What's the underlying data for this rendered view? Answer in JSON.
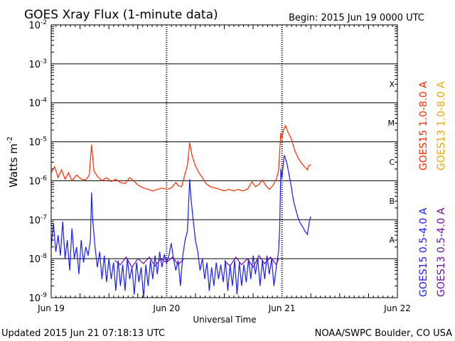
{
  "chart_data": {
    "type": "line",
    "title": "GOES Xray Flux (1-minute data)",
    "begin_label": "Begin:  2015 Jun 19 0000 UTC",
    "ylabel_main": "Watts m",
    "ylabel_exp": "-2",
    "xlabel": "Universal Time",
    "x_ticks": [
      "Jun 19",
      "Jun 20",
      "Jun 21",
      "Jun 22"
    ],
    "xlim_days": [
      0,
      3
    ],
    "yscale": "log",
    "ylim": [
      1e-09,
      0.01
    ],
    "y_tick_exponents": [
      "-2",
      "-3",
      "-4",
      "-5",
      "-6",
      "-7",
      "-8",
      "-9"
    ],
    "y_tick_base": "10",
    "flare_classes": [
      {
        "label": "X",
        "value": 0.0001
      },
      {
        "label": "M",
        "value": 1e-05
      },
      {
        "label": "C",
        "value": 1e-06
      },
      {
        "label": "B",
        "value": 1e-07
      },
      {
        "label": "A",
        "value": 1e-08
      }
    ],
    "series": [
      {
        "name": "GOES15 1.0-8.0 A",
        "color": "#ff2a00",
        "points": [
          [
            0.0,
            1.6e-06
          ],
          [
            0.03,
            2.3e-06
          ],
          [
            0.06,
            1.2e-06
          ],
          [
            0.09,
            1.9e-06
          ],
          [
            0.12,
            1.1e-06
          ],
          [
            0.15,
            1.6e-06
          ],
          [
            0.18,
            1e-06
          ],
          [
            0.22,
            1.4e-06
          ],
          [
            0.26,
            1.1e-06
          ],
          [
            0.3,
            1.05e-06
          ],
          [
            0.33,
            1.4e-06
          ],
          [
            0.35,
            8.5e-06
          ],
          [
            0.37,
            1.8e-06
          ],
          [
            0.4,
            1.3e-06
          ],
          [
            0.44,
            1e-06
          ],
          [
            0.48,
            1.2e-06
          ],
          [
            0.52,
            9.5e-07
          ],
          [
            0.56,
            1.1e-06
          ],
          [
            0.6,
            9e-07
          ],
          [
            0.64,
            8.5e-07
          ],
          [
            0.68,
            1.2e-06
          ],
          [
            0.72,
            9.5e-07
          ],
          [
            0.76,
            7.5e-07
          ],
          [
            0.8,
            6.5e-07
          ],
          [
            0.84,
            6e-07
          ],
          [
            0.88,
            5.5e-07
          ],
          [
            0.92,
            6e-07
          ],
          [
            0.96,
            6.5e-07
          ],
          [
            1.0,
            6e-07
          ],
          [
            1.04,
            6.5e-07
          ],
          [
            1.08,
            9e-07
          ],
          [
            1.1,
            7.5e-07
          ],
          [
            1.13,
            7e-07
          ],
          [
            1.16,
            1.5e-06
          ],
          [
            1.18,
            2.5e-06
          ],
          [
            1.2,
            9.5e-06
          ],
          [
            1.22,
            4.5e-06
          ],
          [
            1.25,
            2.4e-06
          ],
          [
            1.28,
            1.6e-06
          ],
          [
            1.31,
            1.2e-06
          ],
          [
            1.34,
            8.5e-07
          ],
          [
            1.38,
            7e-07
          ],
          [
            1.42,
            6.5e-07
          ],
          [
            1.46,
            6e-07
          ],
          [
            1.5,
            5.5e-07
          ],
          [
            1.54,
            6e-07
          ],
          [
            1.58,
            5.5e-07
          ],
          [
            1.62,
            6e-07
          ],
          [
            1.66,
            5.5e-07
          ],
          [
            1.7,
            6e-07
          ],
          [
            1.74,
            9.5e-07
          ],
          [
            1.77,
            7e-07
          ],
          [
            1.8,
            8e-07
          ],
          [
            1.83,
            1.05e-06
          ],
          [
            1.86,
            7.5e-07
          ],
          [
            1.89,
            6e-07
          ],
          [
            1.92,
            7.5e-07
          ],
          [
            1.95,
            1.1e-06
          ],
          [
            1.97,
            1.8e-06
          ],
          [
            1.99,
            1.7e-05
          ],
          [
            2.0,
            1.2e-05
          ],
          [
            2.01,
            1.9e-05
          ],
          [
            2.03,
            2.6e-05
          ],
          [
            2.05,
            1.8e-05
          ],
          [
            2.08,
            1.2e-05
          ],
          [
            2.11,
            6e-06
          ],
          [
            2.14,
            3.8e-06
          ],
          [
            2.17,
            2.8e-06
          ],
          [
            2.2,
            2.2e-06
          ],
          [
            2.22,
            1.9e-06
          ],
          [
            2.23,
            2.4e-06
          ],
          [
            2.25,
            2.6e-06
          ]
        ]
      },
      {
        "name": "GOES13 1.0-8.0 A",
        "color": "#f0a500",
        "points": []
      },
      {
        "name": "GOES15 0.5-4.0 A",
        "color": "#1a1aff",
        "points": [
          [
            0.0,
            2e-08
          ],
          [
            0.02,
            8e-08
          ],
          [
            0.04,
            1.5e-08
          ],
          [
            0.06,
            4e-08
          ],
          [
            0.08,
            1.2e-08
          ],
          [
            0.1,
            9e-08
          ],
          [
            0.12,
            1e-08
          ],
          [
            0.14,
            3e-08
          ],
          [
            0.16,
            5e-09
          ],
          [
            0.18,
            6e-08
          ],
          [
            0.2,
            1e-08
          ],
          [
            0.22,
            2e-08
          ],
          [
            0.24,
            4e-09
          ],
          [
            0.26,
            3e-08
          ],
          [
            0.28,
            8e-09
          ],
          [
            0.3,
            2e-08
          ],
          [
            0.32,
            1.2e-08
          ],
          [
            0.34,
            3e-08
          ],
          [
            0.35,
            5e-07
          ],
          [
            0.36,
            1e-07
          ],
          [
            0.38,
            2e-08
          ],
          [
            0.4,
            6e-09
          ],
          [
            0.42,
            1.5e-08
          ],
          [
            0.44,
            3e-09
          ],
          [
            0.46,
            1.2e-08
          ],
          [
            0.48,
            2.5e-09
          ],
          [
            0.5,
            1e-08
          ],
          [
            0.52,
            3e-09
          ],
          [
            0.54,
            8e-09
          ],
          [
            0.56,
            1.5e-09
          ],
          [
            0.58,
            9e-09
          ],
          [
            0.6,
            2e-09
          ],
          [
            0.62,
            7e-09
          ],
          [
            0.64,
            1.5e-09
          ],
          [
            0.66,
            1e-08
          ],
          [
            0.68,
            3e-09
          ],
          [
            0.7,
            6e-09
          ],
          [
            0.72,
            1.2e-09
          ],
          [
            0.74,
            8e-09
          ],
          [
            0.76,
            2.5e-09
          ],
          [
            0.78,
            6e-09
          ],
          [
            0.8,
            1e-09
          ],
          [
            0.82,
            7e-09
          ],
          [
            0.84,
            2e-09
          ],
          [
            0.86,
            9e-09
          ],
          [
            0.88,
            3e-09
          ],
          [
            0.9,
            1.2e-08
          ],
          [
            0.92,
            4e-09
          ],
          [
            0.94,
            1.5e-08
          ],
          [
            0.96,
            6e-09
          ],
          [
            0.98,
            1.3e-08
          ],
          [
            1.0,
            8e-09
          ],
          [
            1.02,
            1.2e-08
          ],
          [
            1.04,
            2.5e-08
          ],
          [
            1.06,
            1e-08
          ],
          [
            1.08,
            5e-09
          ],
          [
            1.1,
            9e-09
          ],
          [
            1.12,
            2e-09
          ],
          [
            1.14,
            1.2e-08
          ],
          [
            1.16,
            3e-08
          ],
          [
            1.18,
            5e-08
          ],
          [
            1.2,
            1.1e-06
          ],
          [
            1.21,
            4e-07
          ],
          [
            1.23,
            1e-07
          ],
          [
            1.25,
            3e-08
          ],
          [
            1.27,
            1.5e-08
          ],
          [
            1.29,
            5e-09
          ],
          [
            1.31,
            1e-08
          ],
          [
            1.33,
            3e-09
          ],
          [
            1.35,
            8e-09
          ],
          [
            1.37,
            1.5e-09
          ],
          [
            1.39,
            6e-09
          ],
          [
            1.41,
            2e-09
          ],
          [
            1.43,
            8e-09
          ],
          [
            1.45,
            3e-09
          ],
          [
            1.47,
            7e-09
          ],
          [
            1.49,
            2.5e-09
          ],
          [
            1.51,
            9e-09
          ],
          [
            1.53,
            1.5e-09
          ],
          [
            1.55,
            7e-09
          ],
          [
            1.57,
            2e-09
          ],
          [
            1.59,
            9e-09
          ],
          [
            1.61,
            1.2e-09
          ],
          [
            1.63,
            8e-09
          ],
          [
            1.65,
            2e-09
          ],
          [
            1.67,
            7e-09
          ],
          [
            1.69,
            2.5e-09
          ],
          [
            1.71,
            1e-08
          ],
          [
            1.73,
            3e-09
          ],
          [
            1.75,
            1.2e-08
          ],
          [
            1.77,
            4e-09
          ],
          [
            1.79,
            1e-08
          ],
          [
            1.81,
            2e-09
          ],
          [
            1.83,
            9e-09
          ],
          [
            1.85,
            3e-09
          ],
          [
            1.87,
            1.2e-08
          ],
          [
            1.89,
            4e-09
          ],
          [
            1.91,
            1e-08
          ],
          [
            1.93,
            2e-09
          ],
          [
            1.95,
            6e-09
          ],
          [
            1.97,
            1.5e-08
          ],
          [
            1.98,
            6e-08
          ],
          [
            1.99,
            2e-06
          ],
          [
            2.0,
            1.2e-06
          ],
          [
            2.01,
            2.5e-06
          ],
          [
            2.02,
            4.5e-06
          ],
          [
            2.04,
            3e-06
          ],
          [
            2.06,
            1.5e-06
          ],
          [
            2.08,
            7e-07
          ],
          [
            2.1,
            3e-07
          ],
          [
            2.12,
            1.8e-07
          ],
          [
            2.14,
            1.1e-07
          ],
          [
            2.16,
            8e-08
          ],
          [
            2.18,
            6.5e-08
          ],
          [
            2.2,
            5e-08
          ],
          [
            2.22,
            4.2e-08
          ],
          [
            2.23,
            6.5e-08
          ],
          [
            2.24,
            1e-07
          ],
          [
            2.25,
            1.2e-07
          ]
        ]
      },
      {
        "name": "GOES13 0.5-4.0 A",
        "color": "#6a0dad",
        "points": [
          [
            0.55,
            9e-09
          ],
          [
            0.6,
            7e-09
          ],
          [
            0.65,
            1.1e-08
          ],
          [
            0.7,
            6e-09
          ],
          [
            0.75,
            1e-08
          ],
          [
            0.8,
            7.5e-09
          ],
          [
            0.85,
            1.1e-08
          ],
          [
            0.9,
            6.5e-09
          ],
          [
            0.95,
            1e-08
          ],
          [
            1.0,
            8e-09
          ],
          [
            1.05,
            1.1e-08
          ],
          [
            1.1,
            7e-09
          ],
          [
            1.15,
            1e-08
          ],
          [
            1.5,
            9e-09
          ],
          [
            1.55,
            6.5e-09
          ],
          [
            1.6,
            1.1e-08
          ],
          [
            1.65,
            7e-09
          ],
          [
            1.7,
            1e-08
          ],
          [
            1.75,
            6e-09
          ],
          [
            1.8,
            1.2e-08
          ],
          [
            1.85,
            7.5e-09
          ],
          [
            1.9,
            1.1e-08
          ],
          [
            1.95,
            7e-09
          ],
          [
            1.97,
            1e-08
          ]
        ]
      }
    ]
  },
  "footer": {
    "updated": "Updated 2015 Jun 21 07:18:13 UTC",
    "credit": "NOAA/SWPC Boulder, CO USA"
  }
}
